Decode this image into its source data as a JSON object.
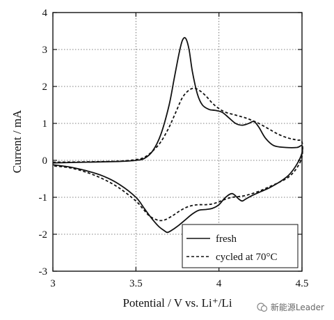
{
  "chart_data": {
    "type": "line",
    "title": "",
    "xlabel": "Potential / V vs. Li⁺/Li",
    "ylabel": "Current / mA",
    "xlim": [
      3,
      4.5
    ],
    "ylim": [
      -3,
      4
    ],
    "x_ticks": [
      "3",
      "3.5",
      "4",
      "4.5"
    ],
    "y_ticks": [
      "-3",
      "-2",
      "-1",
      "0",
      "1",
      "2",
      "3",
      "4"
    ],
    "grid": "dotted",
    "legend_position": "bottom-right",
    "series": [
      {
        "name": "fresh",
        "style": "solid",
        "color": "#111111",
        "x": [
          3.0,
          3.2,
          3.4,
          3.5,
          3.55,
          3.6,
          3.65,
          3.7,
          3.73,
          3.76,
          3.78,
          3.8,
          3.82,
          3.84,
          3.87,
          3.9,
          3.94,
          3.98,
          4.02,
          4.06,
          4.1,
          4.14,
          4.18,
          4.21,
          4.24,
          4.28,
          4.33,
          4.4,
          4.47,
          4.5,
          4.5,
          4.47,
          4.42,
          4.36,
          4.3,
          4.25,
          4.2,
          4.16,
          4.14,
          4.12,
          4.08,
          4.04,
          4.0,
          3.96,
          3.92,
          3.88,
          3.84,
          3.8,
          3.76,
          3.72,
          3.69,
          3.67,
          3.64,
          3.6,
          3.55,
          3.5,
          3.4,
          3.3,
          3.2,
          3.1,
          3.0
        ],
        "y": [
          -0.07,
          -0.05,
          -0.03,
          0.0,
          0.05,
          0.25,
          0.7,
          1.5,
          2.2,
          2.9,
          3.25,
          3.3,
          3.0,
          2.4,
          1.8,
          1.5,
          1.38,
          1.35,
          1.3,
          1.15,
          1.0,
          0.95,
          1.0,
          1.05,
          0.9,
          0.6,
          0.4,
          0.35,
          0.35,
          0.4,
          0.2,
          -0.1,
          -0.4,
          -0.6,
          -0.75,
          -0.85,
          -0.95,
          -1.05,
          -1.1,
          -1.05,
          -0.9,
          -1.0,
          -1.2,
          -1.3,
          -1.33,
          -1.35,
          -1.45,
          -1.6,
          -1.75,
          -1.88,
          -1.95,
          -1.9,
          -1.8,
          -1.6,
          -1.3,
          -1.0,
          -0.65,
          -0.42,
          -0.28,
          -0.18,
          -0.12
        ]
      },
      {
        "name": "cycled at 70°C",
        "style": "dashed",
        "color": "#111111",
        "x": [
          3.0,
          3.2,
          3.4,
          3.5,
          3.55,
          3.6,
          3.65,
          3.7,
          3.74,
          3.78,
          3.82,
          3.85,
          3.88,
          3.92,
          3.96,
          4.0,
          4.04,
          4.08,
          4.12,
          4.16,
          4.2,
          4.24,
          4.3,
          4.36,
          4.42,
          4.47,
          4.5,
          4.5,
          4.47,
          4.42,
          4.36,
          4.3,
          4.25,
          4.2,
          4.16,
          4.12,
          4.08,
          4.04,
          4.0,
          3.96,
          3.92,
          3.88,
          3.84,
          3.8,
          3.76,
          3.72,
          3.68,
          3.65,
          3.62,
          3.58,
          3.54,
          3.5,
          3.4,
          3.3,
          3.2,
          3.1,
          3.0
        ],
        "y": [
          -0.05,
          -0.04,
          -0.02,
          0.02,
          0.08,
          0.25,
          0.5,
          0.9,
          1.3,
          1.7,
          1.9,
          1.95,
          1.9,
          1.75,
          1.55,
          1.4,
          1.3,
          1.25,
          1.2,
          1.15,
          1.08,
          1.0,
          0.85,
          0.7,
          0.6,
          0.55,
          0.5,
          0.1,
          -0.2,
          -0.45,
          -0.6,
          -0.72,
          -0.82,
          -0.9,
          -0.95,
          -0.98,
          -1.0,
          -1.05,
          -1.12,
          -1.18,
          -1.2,
          -1.2,
          -1.22,
          -1.28,
          -1.38,
          -1.5,
          -1.6,
          -1.63,
          -1.6,
          -1.5,
          -1.3,
          -1.1,
          -0.75,
          -0.5,
          -0.32,
          -0.2,
          -0.15
        ]
      }
    ]
  },
  "watermark": {
    "text": "新能源Leader"
  }
}
